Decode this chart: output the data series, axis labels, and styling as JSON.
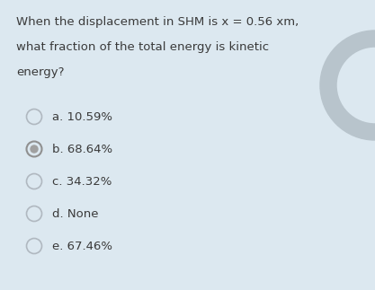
{
  "background_color": "#dce8f0",
  "question_text_line1": "When the displacement in SHM is x = 0.56 xm,",
  "question_text_line2": "what fraction of the total energy is kinetic",
  "question_text_line3": "energy?",
  "options": [
    {
      "label": "a. 10.59%",
      "selected": false
    },
    {
      "label": "b. 68.64%",
      "selected": true
    },
    {
      "label": "c. 34.32%",
      "selected": false
    },
    {
      "label": "d. None",
      "selected": false
    },
    {
      "label": "e. 67.46%",
      "selected": false
    }
  ],
  "text_color": "#3a3a3a",
  "radio_outer_color": "#b0b8c0",
  "radio_selected_outer": "#909090",
  "radio_selected_inner": "#a0a0a0",
  "figsize": [
    4.17,
    3.23
  ],
  "dpi": 100,
  "corner_circle_color": "#b8c4cc",
  "font_size": 9.5
}
